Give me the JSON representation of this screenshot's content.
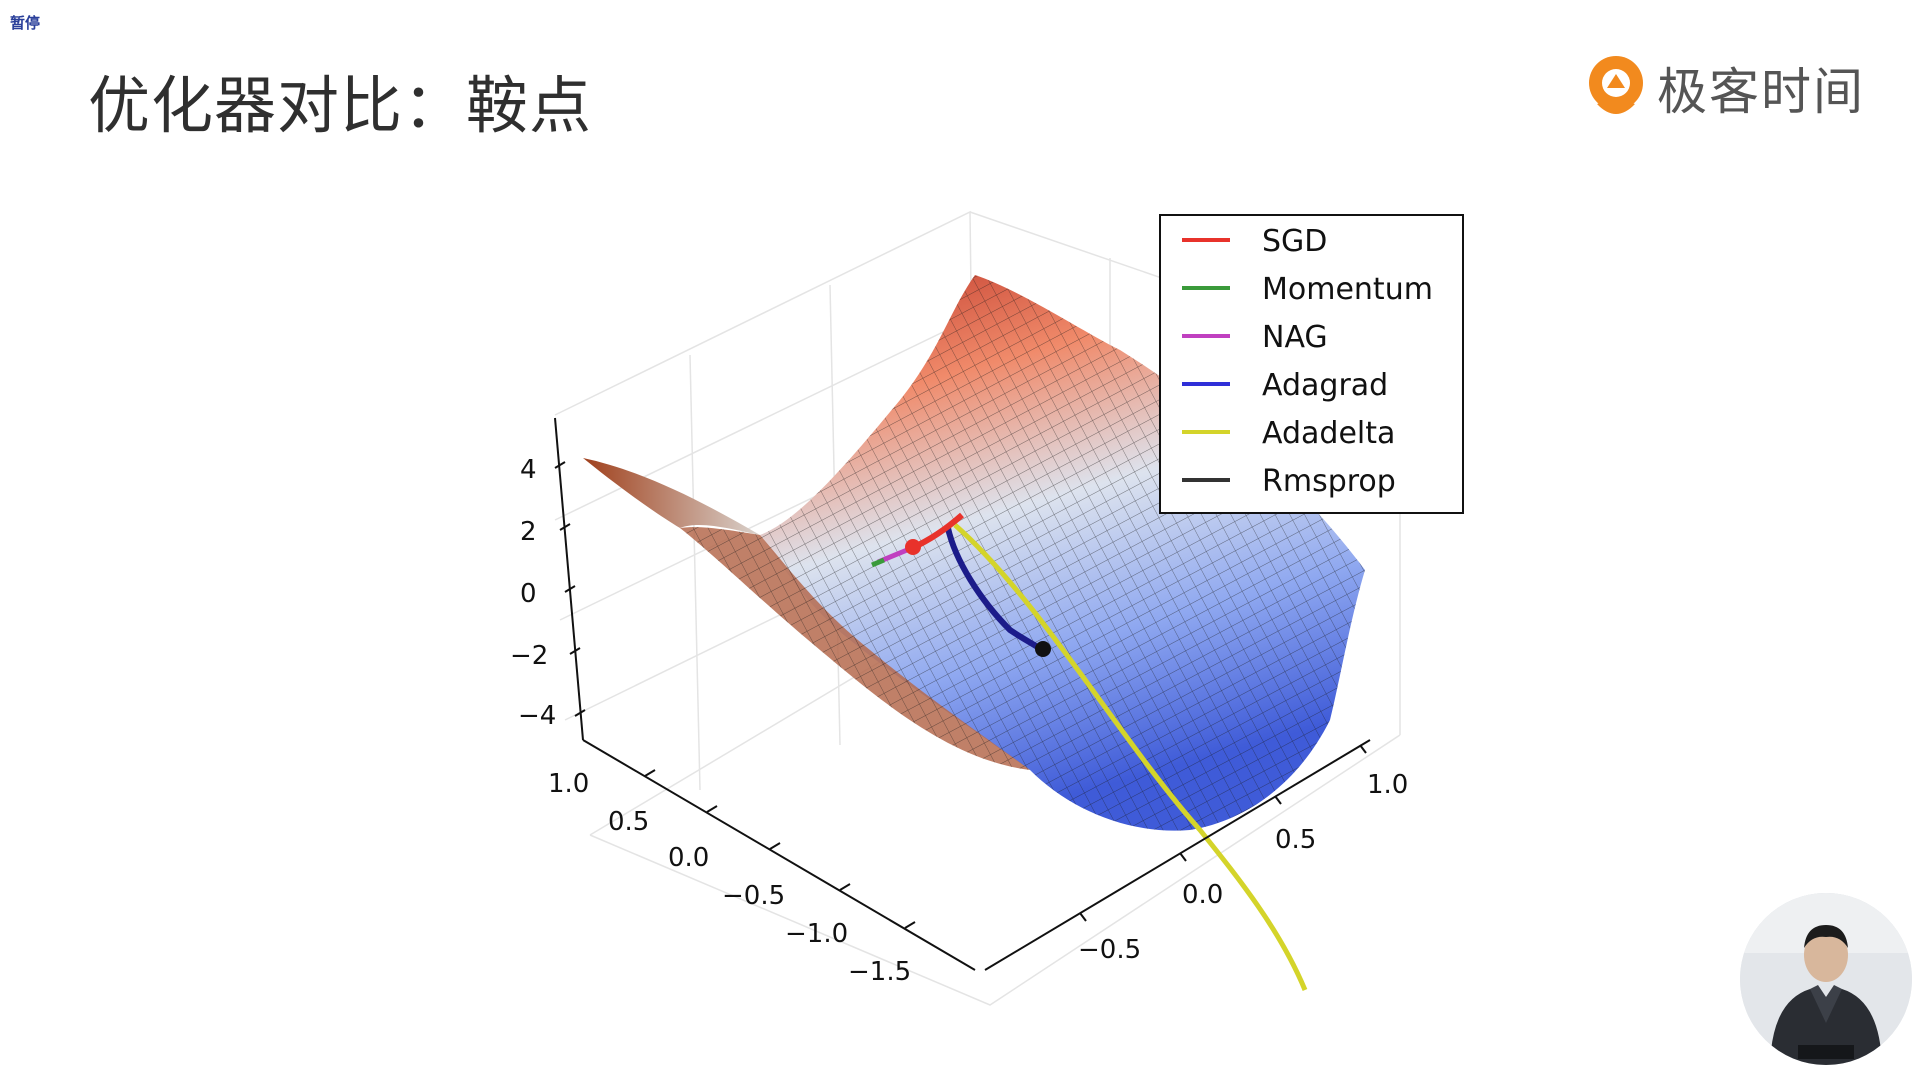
{
  "overlay": {
    "status_label": "暂停"
  },
  "slide": {
    "title": "优化器对比：鞍点"
  },
  "brand": {
    "name": "极客时间",
    "icon": "geektime-logo-icon",
    "accent_color": "#f28a1e"
  },
  "chart_data": {
    "type": "surface3d",
    "surface_colormap": "coolwarm",
    "z_ticks": [
      "4",
      "2",
      "0",
      "−2",
      "−4"
    ],
    "x_ticks": [
      "1.0",
      "0.5",
      "0.0",
      "−0.5",
      "−1.0",
      "−1.5"
    ],
    "y_ticks": [
      "1.0",
      "0.5",
      "0.0",
      "−0.5"
    ],
    "legend_position": "top-right",
    "series": [
      {
        "name": "SGD",
        "color": "#e8322b"
      },
      {
        "name": "Momentum",
        "color": "#3a9a3a"
      },
      {
        "name": "NAG",
        "color": "#c040c0"
      },
      {
        "name": "Adagrad",
        "color": "#2f2fd8"
      },
      {
        "name": "Adadelta",
        "color": "#d4d42a"
      },
      {
        "name": "Rmsprop",
        "color": "#333333"
      }
    ]
  },
  "webcam": {
    "icon": "presenter-video-icon"
  }
}
